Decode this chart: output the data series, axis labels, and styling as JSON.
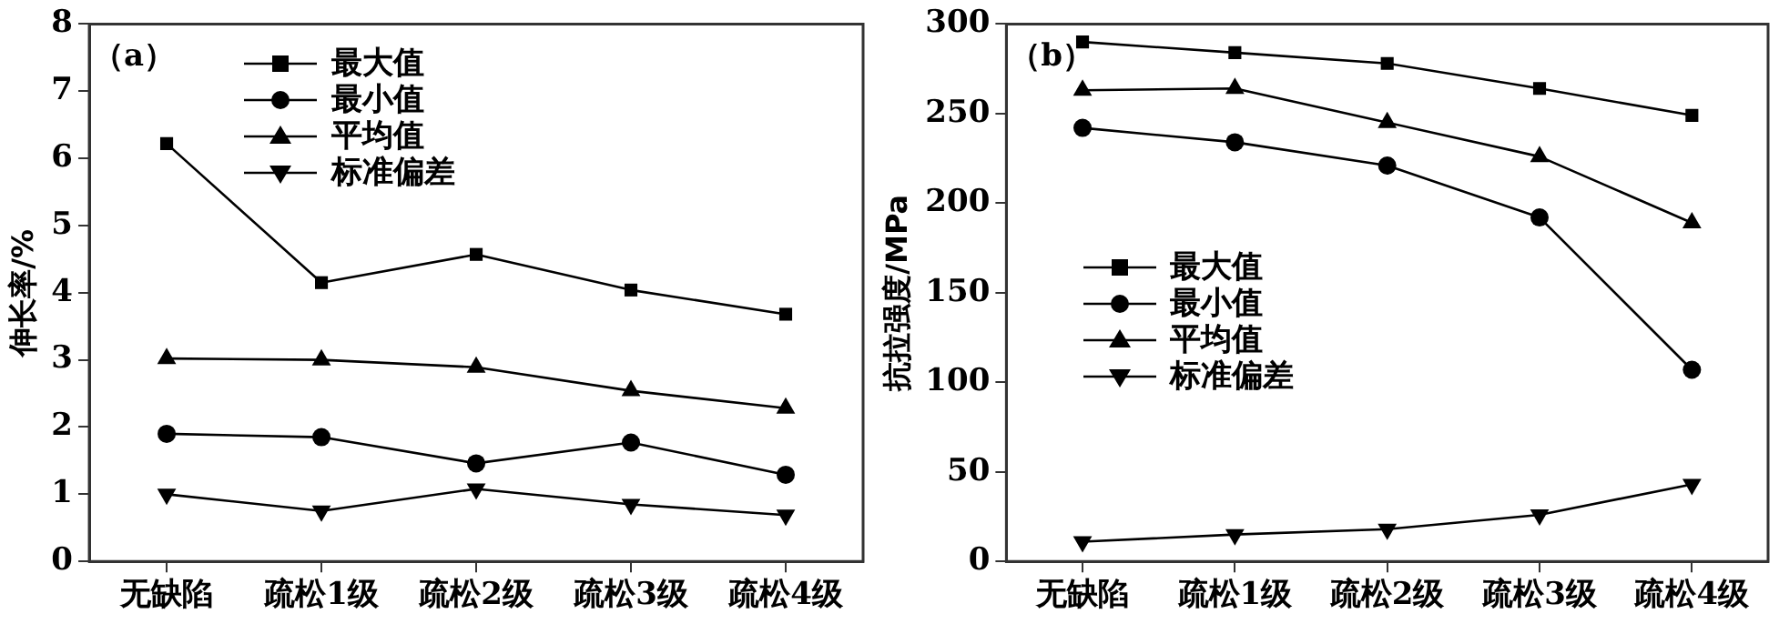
{
  "chart_data": [
    {
      "type": "line",
      "annotations": [
        "（a）"
      ],
      "ylabel": "伸长率/%",
      "categories": [
        "无缺陷",
        "疏松1级",
        "疏松2级",
        "疏松3级",
        "疏松4级"
      ],
      "ylim": [
        0,
        8
      ],
      "yticks": [
        0,
        1,
        2,
        3,
        4,
        5,
        6,
        7,
        8
      ],
      "grid": false,
      "legend": "top",
      "line_style": "solid",
      "series": [
        {
          "name": "最大值",
          "color": "#000000",
          "marker": "square",
          "values": [
            6.22,
            4.15,
            4.57,
            4.04,
            3.68
          ]
        },
        {
          "name": "最小值",
          "color": "#000000",
          "marker": "circle",
          "values": [
            1.9,
            1.85,
            1.46,
            1.77,
            1.29
          ]
        },
        {
          "name": "平均值",
          "color": "#000000",
          "marker": "triangle",
          "values": [
            3.02,
            3.0,
            2.89,
            2.54,
            2.28
          ]
        },
        {
          "name": "标准偏差",
          "color": "#000000",
          "marker": "triangle-down",
          "values": [
            1.0,
            0.75,
            1.08,
            0.85,
            0.69
          ]
        }
      ]
    },
    {
      "type": "line",
      "annotations": [
        "（b）"
      ],
      "ylabel": "抗拉强度/MPa",
      "categories": [
        "无缺陷",
        "疏松1级",
        "疏松2级",
        "疏松3级",
        "疏松4级"
      ],
      "ylim": [
        0,
        300
      ],
      "yticks": [
        0,
        50,
        100,
        150,
        200,
        250,
        300
      ],
      "grid": false,
      "legend": "left",
      "line_style": "solid",
      "series": [
        {
          "name": "最大值",
          "color": "#000000",
          "marker": "square",
          "values": [
            290,
            284,
            278,
            264,
            249
          ]
        },
        {
          "name": "最小值",
          "color": "#000000",
          "marker": "circle",
          "values": [
            242,
            234,
            221,
            192,
            107
          ]
        },
        {
          "name": "平均值",
          "color": "#000000",
          "marker": "triangle",
          "values": [
            263,
            264,
            245,
            226,
            189
          ]
        },
        {
          "name": "标准偏差",
          "color": "#000000",
          "marker": "triangle-down",
          "values": [
            11,
            15,
            18,
            26,
            43
          ]
        }
      ]
    }
  ]
}
